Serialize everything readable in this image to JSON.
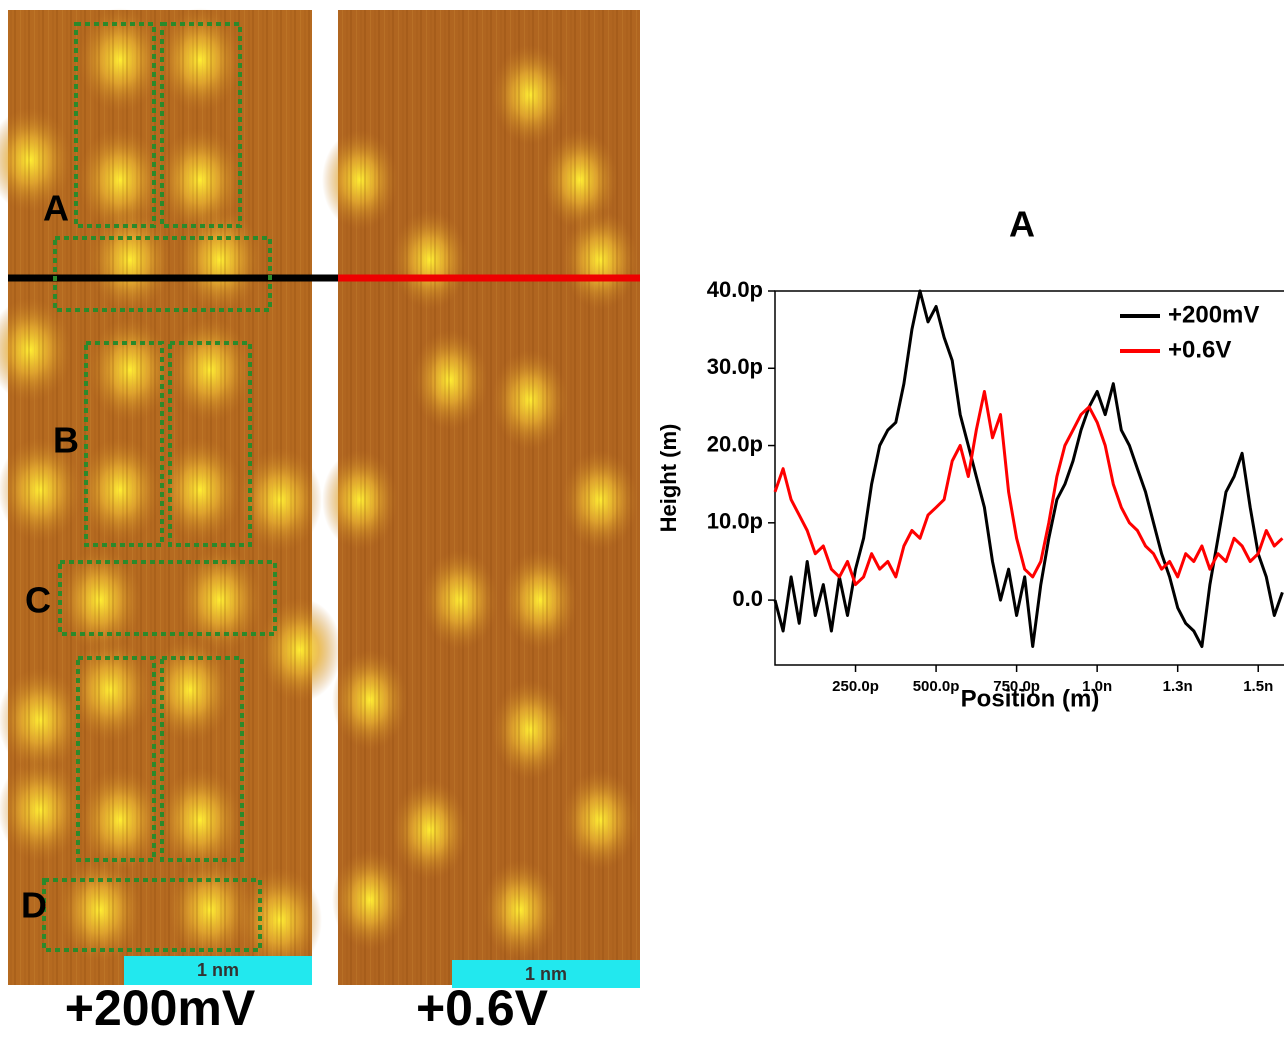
{
  "chart_data": {
    "type": "line",
    "title": "A",
    "x_label": "Position (m)",
    "y_label": "Height (m)",
    "x": [
      0,
      2.5e-11,
      5e-11,
      7.5e-11,
      1e-10,
      1.25e-10,
      1.5e-10,
      1.75e-10,
      2e-10,
      2.25e-10,
      2.5e-10,
      2.75e-10,
      3e-10,
      3.25e-10,
      3.5e-10,
      3.75e-10,
      4e-10,
      4.25e-10,
      4.5e-10,
      4.75e-10,
      5e-10,
      5.25e-10,
      5.5e-10,
      5.75e-10,
      6e-10,
      6.25e-10,
      6.5e-10,
      6.75e-10,
      7e-10,
      7.25e-10,
      7.5e-10,
      7.75e-10,
      8e-10,
      8.25e-10,
      8.5e-10,
      8.75e-10,
      9e-10,
      9.25e-10,
      9.5e-10,
      9.75e-10,
      1e-09,
      1.025e-09,
      1.05e-09,
      1.075e-09,
      1.1e-09,
      1.125e-09,
      1.15e-09,
      1.175e-09,
      1.2e-09,
      1.225e-09,
      1.25e-09,
      1.275e-09,
      1.3e-09,
      1.325e-09,
      1.35e-09,
      1.375e-09,
      1.4e-09,
      1.425e-09,
      1.45e-09,
      1.475e-09,
      1.5e-09,
      1.525e-09,
      1.55e-09,
      1.575e-09
    ],
    "series": [
      {
        "name": "+200mV",
        "color": "#000000",
        "values": [
          0,
          -4e-12,
          3e-12,
          -3e-12,
          5e-12,
          -2e-12,
          2e-12,
          -4e-12,
          3e-12,
          -2e-12,
          4e-12,
          8e-12,
          1.5e-11,
          2e-11,
          2.2e-11,
          2.3e-11,
          2.8e-11,
          3.5e-11,
          4e-11,
          3.6e-11,
          3.8e-11,
          3.4e-11,
          3.1e-11,
          2.4e-11,
          2e-11,
          1.6e-11,
          1.2e-11,
          5e-12,
          0,
          4e-12,
          -2e-12,
          3e-12,
          -6e-12,
          2e-12,
          8e-12,
          1.3e-11,
          1.5e-11,
          1.8e-11,
          2.2e-11,
          2.5e-11,
          2.7e-11,
          2.4e-11,
          2.8e-11,
          2.2e-11,
          2e-11,
          1.7e-11,
          1.4e-11,
          1e-11,
          6e-12,
          3e-12,
          -1e-12,
          -3e-12,
          -4e-12,
          -6e-12,
          2e-12,
          8e-12,
          1.4e-11,
          1.6e-11,
          1.9e-11,
          1.2e-11,
          6e-12,
          3e-12,
          -2e-12,
          1e-12
        ]
      },
      {
        "name": "+0.6V",
        "color": "#ff0000",
        "values": [
          1.4e-11,
          1.7e-11,
          1.3e-11,
          1.1e-11,
          9e-12,
          6e-12,
          7e-12,
          4e-12,
          3e-12,
          5e-12,
          2e-12,
          3e-12,
          6e-12,
          4e-12,
          5e-12,
          3e-12,
          7e-12,
          9e-12,
          8e-12,
          1.1e-11,
          1.2e-11,
          1.3e-11,
          1.8e-11,
          2e-11,
          1.6e-11,
          2.2e-11,
          2.7e-11,
          2.1e-11,
          2.4e-11,
          1.4e-11,
          8e-12,
          4e-12,
          3e-12,
          5e-12,
          1e-11,
          1.6e-11,
          2e-11,
          2.2e-11,
          2.4e-11,
          2.5e-11,
          2.3e-11,
          2e-11,
          1.5e-11,
          1.2e-11,
          1e-11,
          9e-12,
          7e-12,
          6e-12,
          4e-12,
          5e-12,
          3e-12,
          6e-12,
          5e-12,
          7e-12,
          4e-12,
          6e-12,
          5e-12,
          8e-12,
          7e-12,
          5e-12,
          6e-12,
          9e-12,
          7e-12,
          8e-12
        ]
      }
    ],
    "xlim": [
      0,
      1.58e-09
    ],
    "ylim": [
      -8.4e-12,
      4e-11
    ],
    "xticks": [
      {
        "value": 2.5e-10,
        "label": "250.0p"
      },
      {
        "value": 5e-10,
        "label": "500.0p"
      },
      {
        "value": 7.5e-10,
        "label": "750.0p"
      },
      {
        "value": 1e-09,
        "label": "1.0n"
      },
      {
        "value": 1.25e-09,
        "label": "1.3n"
      },
      {
        "value": 1.5e-09,
        "label": "1.5n"
      }
    ],
    "yticks": [
      {
        "value": 0,
        "label": "0.0"
      },
      {
        "value": 1e-11,
        "label": "10.0p"
      },
      {
        "value": 2e-11,
        "label": "20.0p"
      },
      {
        "value": 3e-11,
        "label": "30.0p"
      },
      {
        "value": 4e-11,
        "label": "40.0p"
      }
    ],
    "legend": "upper right"
  },
  "panels": [
    {
      "label": "+200mV",
      "scale_bar": "1 nm",
      "regions": [
        "A",
        "B",
        "C",
        "D"
      ]
    },
    {
      "label": "+0.6V",
      "scale_bar": "1 nm"
    }
  ]
}
